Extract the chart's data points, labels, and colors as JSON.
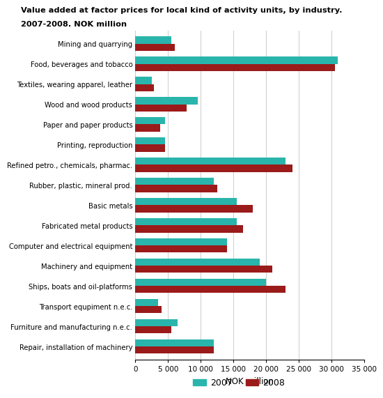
{
  "title_line1": "Value added at factor prices for local kind of activity units, by industry.",
  "title_line2": "2007-2008. NOK million",
  "categories": [
    "Mining and quarrying",
    "Food, beverages and tobacco",
    "Textiles, wearing apparel, leather",
    "Wood and wood products",
    "Paper and paper products",
    "Printing, reproduction",
    "Refined petro., chemicals, pharmac.",
    "Rubber, plastic, mineral prod.",
    "Basic metals",
    "Fabricated metal products",
    "Computer and electrical equipment",
    "Machinery and equipment",
    "Ships, boats and oil-platforms",
    "Transport equpiment n.e.c.",
    "Furniture and manufacturing n.e.c.",
    "Repair, installation of machinery"
  ],
  "values_2007": [
    5500,
    31000,
    2500,
    9500,
    4500,
    4500,
    23000,
    12000,
    15500,
    15500,
    14000,
    19000,
    20000,
    3500,
    6500,
    12000
  ],
  "values_2008": [
    6000,
    30500,
    2800,
    7800,
    3800,
    4500,
    24000,
    12500,
    18000,
    16500,
    14000,
    21000,
    23000,
    4000,
    5500,
    12000
  ],
  "color_2007": "#2ab5ac",
  "color_2008": "#9b1a1a",
  "xlabel": "NOK million",
  "xlim": [
    0,
    35000
  ],
  "xticks": [
    0,
    5000,
    10000,
    15000,
    20000,
    25000,
    30000,
    35000
  ],
  "xtick_labels": [
    "0",
    "5 000",
    "10 000",
    "15 000",
    "20 000",
    "25 000",
    "30 000",
    "35 000"
  ],
  "legend_labels": [
    "2007",
    "2008"
  ],
  "background_color": "#ffffff",
  "grid_color": "#cccccc"
}
